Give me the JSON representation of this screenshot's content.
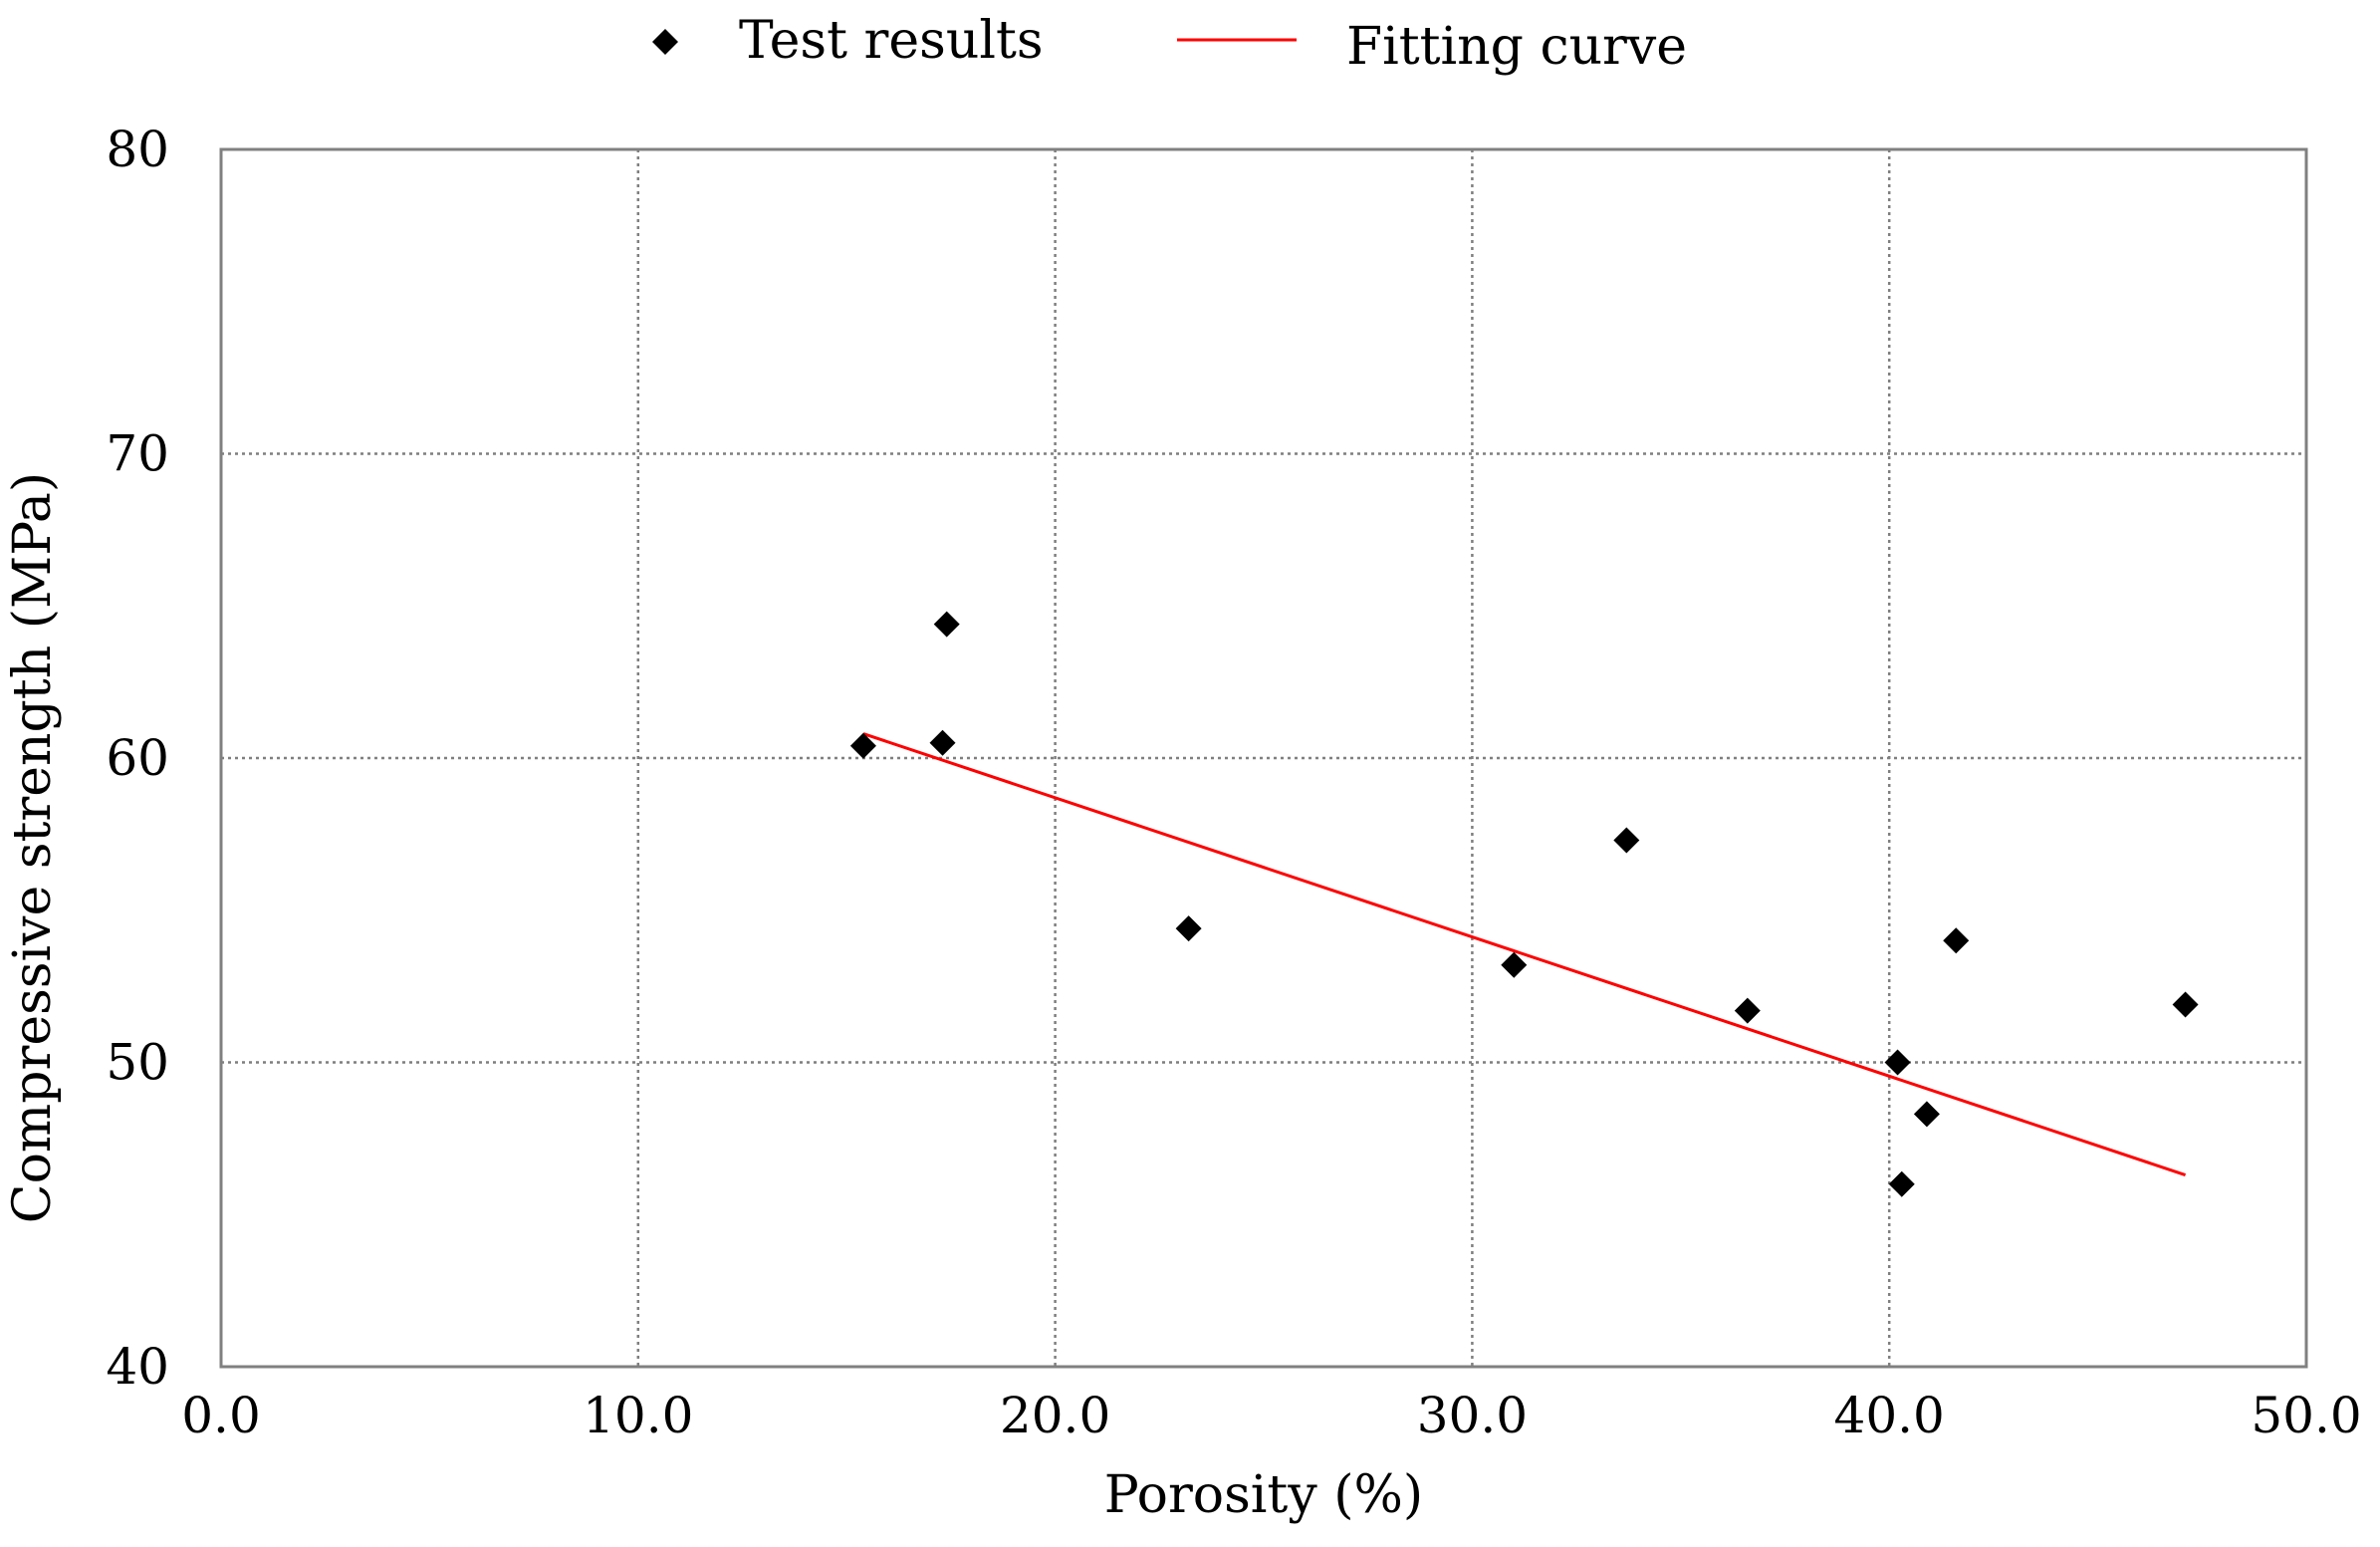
{
  "chart_data": {
    "type": "scatter",
    "title": "",
    "xlabel": "Porosity (%)",
    "ylabel": "Compressive strength (MPa)",
    "xlim": [
      0,
      50
    ],
    "ylim": [
      40,
      80
    ],
    "x_ticks": [
      0,
      10,
      20,
      30,
      40,
      50
    ],
    "x_tick_labels": [
      "0.0",
      "10.0",
      "20.0",
      "30.0",
      "40.0",
      "50.0"
    ],
    "y_ticks": [
      40,
      50,
      60,
      70,
      80
    ],
    "y_tick_labels": [
      "40",
      "50",
      "60",
      "70",
      "80"
    ],
    "grid": true,
    "legend_position": "top",
    "series": [
      {
        "name": "Test results",
        "kind": "scatter",
        "marker": "diamond",
        "color": "#000000",
        "points": [
          {
            "x": 15.4,
            "y": 60.4
          },
          {
            "x": 17.3,
            "y": 60.5
          },
          {
            "x": 17.4,
            "y": 64.4
          },
          {
            "x": 23.2,
            "y": 54.4
          },
          {
            "x": 31.0,
            "y": 53.2
          },
          {
            "x": 33.7,
            "y": 57.3
          },
          {
            "x": 36.6,
            "y": 51.7
          },
          {
            "x": 40.2,
            "y": 50.0
          },
          {
            "x": 40.3,
            "y": 46.0
          },
          {
            "x": 40.9,
            "y": 48.3
          },
          {
            "x": 41.6,
            "y": 54.0
          },
          {
            "x": 47.1,
            "y": 51.9
          }
        ]
      },
      {
        "name": "Fitting curve",
        "kind": "line",
        "color": "#ff0000",
        "points": [
          {
            "x": 15.4,
            "y": 60.8
          },
          {
            "x": 47.1,
            "y": 46.3
          }
        ]
      }
    ]
  }
}
